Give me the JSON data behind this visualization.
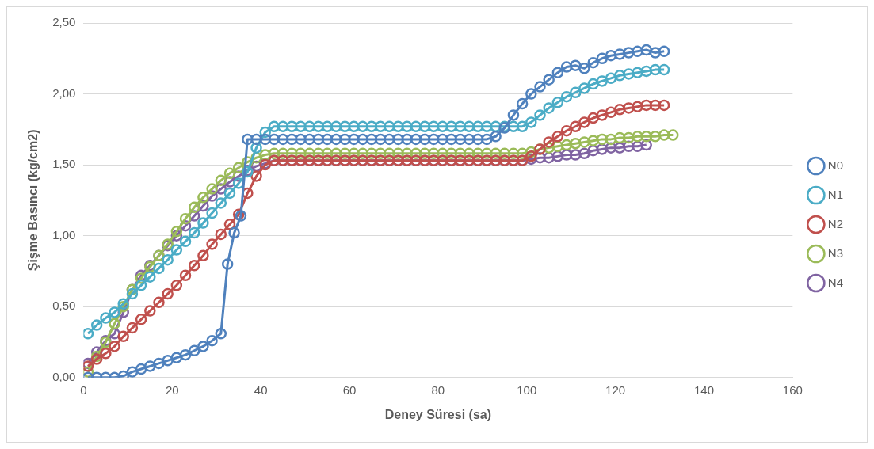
{
  "chart_data": {
    "type": "line",
    "xlabel": "Deney Süresi (sa)",
    "ylabel": "Şişme Basıncı (kg/cm2)",
    "xlim": [
      0,
      160
    ],
    "xticks": [
      0,
      20,
      40,
      60,
      80,
      100,
      120,
      140,
      160
    ],
    "ylim": [
      0,
      2.5
    ],
    "yticks": [
      {
        "value": 0,
        "label": "0,00"
      },
      {
        "value": 0.5,
        "label": "0,50"
      },
      {
        "value": 1,
        "label": "1,00"
      },
      {
        "value": 1.5,
        "label": "1,50"
      },
      {
        "value": 2,
        "label": "2,00"
      },
      {
        "value": 2.5,
        "label": "2,50"
      }
    ],
    "grid": "y",
    "legend": "right",
    "marker": "circle",
    "series": [
      {
        "name": "N0",
        "color": "#4f81bd",
        "x": [
          1,
          3,
          5,
          7,
          9,
          11,
          13,
          15,
          17,
          19,
          21,
          23,
          25,
          27,
          29,
          31,
          32.5,
          34,
          35.5,
          37,
          39,
          41,
          43,
          45,
          47,
          49,
          51,
          53,
          55,
          57,
          59,
          61,
          63,
          65,
          67,
          69,
          71,
          73,
          75,
          77,
          79,
          81,
          83,
          85,
          87,
          89,
          91,
          93,
          95,
          97,
          99,
          101,
          103,
          105,
          107,
          109,
          111,
          113,
          115,
          117,
          119,
          121,
          123,
          125,
          127,
          129,
          131
        ],
        "values": [
          0,
          0,
          0,
          0,
          0.01,
          0.04,
          0.06,
          0.08,
          0.1,
          0.12,
          0.14,
          0.16,
          0.19,
          0.22,
          0.26,
          0.31,
          0.8,
          1.02,
          1.14,
          1.68,
          1.68,
          1.68,
          1.68,
          1.68,
          1.68,
          1.68,
          1.68,
          1.68,
          1.68,
          1.68,
          1.68,
          1.68,
          1.68,
          1.68,
          1.68,
          1.68,
          1.68,
          1.68,
          1.68,
          1.68,
          1.68,
          1.68,
          1.68,
          1.68,
          1.68,
          1.68,
          1.68,
          1.7,
          1.76,
          1.85,
          1.93,
          2.0,
          2.05,
          2.1,
          2.15,
          2.19,
          2.2,
          2.18,
          2.22,
          2.25,
          2.27,
          2.28,
          2.29,
          2.3,
          2.31,
          2.29,
          2.3
        ]
      },
      {
        "name": "N1",
        "color": "#4bacc6",
        "x": [
          1,
          3,
          5,
          7,
          9,
          11,
          13,
          15,
          17,
          19,
          21,
          23,
          25,
          27,
          29,
          31,
          33,
          35,
          37,
          39,
          41,
          43,
          45,
          47,
          49,
          51,
          53,
          55,
          57,
          59,
          61,
          63,
          65,
          67,
          69,
          71,
          73,
          75,
          77,
          79,
          81,
          83,
          85,
          87,
          89,
          91,
          93,
          95,
          97,
          99,
          101,
          103,
          105,
          107,
          109,
          111,
          113,
          115,
          117,
          119,
          121,
          123,
          125,
          127,
          129,
          131
        ],
        "values": [
          0.31,
          0.37,
          0.42,
          0.46,
          0.52,
          0.59,
          0.65,
          0.71,
          0.77,
          0.83,
          0.9,
          0.96,
          1.02,
          1.09,
          1.16,
          1.23,
          1.3,
          1.37,
          1.45,
          1.62,
          1.73,
          1.77,
          1.77,
          1.77,
          1.77,
          1.77,
          1.77,
          1.77,
          1.77,
          1.77,
          1.77,
          1.77,
          1.77,
          1.77,
          1.77,
          1.77,
          1.77,
          1.77,
          1.77,
          1.77,
          1.77,
          1.77,
          1.77,
          1.77,
          1.77,
          1.77,
          1.77,
          1.77,
          1.77,
          1.77,
          1.8,
          1.85,
          1.9,
          1.94,
          1.98,
          2.01,
          2.04,
          2.07,
          2.09,
          2.11,
          2.13,
          2.14,
          2.15,
          2.16,
          2.17,
          2.17
        ]
      },
      {
        "name": "N2",
        "color": "#c0504d",
        "x": [
          1,
          3,
          5,
          7,
          9,
          11,
          13,
          15,
          17,
          19,
          21,
          23,
          25,
          27,
          29,
          31,
          33,
          35,
          37,
          39,
          41,
          43,
          45,
          47,
          49,
          51,
          53,
          55,
          57,
          59,
          61,
          63,
          65,
          67,
          69,
          71,
          73,
          75,
          77,
          79,
          81,
          83,
          85,
          87,
          89,
          91,
          93,
          95,
          97,
          99,
          101,
          103,
          105,
          107,
          109,
          111,
          113,
          115,
          117,
          119,
          121,
          123,
          125,
          127,
          129,
          131
        ],
        "values": [
          0.08,
          0.13,
          0.17,
          0.22,
          0.29,
          0.35,
          0.41,
          0.47,
          0.53,
          0.59,
          0.65,
          0.72,
          0.79,
          0.86,
          0.94,
          1.01,
          1.08,
          1.15,
          1.3,
          1.42,
          1.5,
          1.53,
          1.53,
          1.53,
          1.53,
          1.53,
          1.53,
          1.53,
          1.53,
          1.53,
          1.53,
          1.53,
          1.53,
          1.53,
          1.53,
          1.53,
          1.53,
          1.53,
          1.53,
          1.53,
          1.53,
          1.53,
          1.53,
          1.53,
          1.53,
          1.53,
          1.53,
          1.53,
          1.53,
          1.53,
          1.56,
          1.61,
          1.66,
          1.7,
          1.74,
          1.77,
          1.8,
          1.83,
          1.85,
          1.87,
          1.89,
          1.9,
          1.91,
          1.92,
          1.92,
          1.92
        ]
      },
      {
        "name": "N3",
        "color": "#9bbb59",
        "x": [
          1,
          3,
          5,
          7,
          9,
          11,
          13,
          15,
          17,
          19,
          21,
          23,
          25,
          27,
          29,
          31,
          33,
          35,
          37,
          39,
          41,
          43,
          45,
          47,
          49,
          51,
          53,
          55,
          57,
          59,
          61,
          63,
          65,
          67,
          69,
          71,
          73,
          75,
          77,
          79,
          81,
          83,
          85,
          87,
          89,
          91,
          93,
          95,
          97,
          99,
          101,
          103,
          105,
          107,
          109,
          111,
          113,
          115,
          117,
          119,
          121,
          123,
          125,
          127,
          129,
          131,
          133
        ],
        "values": [
          0.04,
          0.15,
          0.25,
          0.38,
          0.5,
          0.62,
          0.7,
          0.78,
          0.86,
          0.94,
          1.03,
          1.12,
          1.2,
          1.27,
          1.33,
          1.39,
          1.44,
          1.48,
          1.52,
          1.55,
          1.57,
          1.58,
          1.58,
          1.58,
          1.58,
          1.58,
          1.58,
          1.58,
          1.58,
          1.58,
          1.58,
          1.58,
          1.58,
          1.58,
          1.58,
          1.58,
          1.58,
          1.58,
          1.58,
          1.58,
          1.58,
          1.58,
          1.58,
          1.58,
          1.58,
          1.58,
          1.58,
          1.58,
          1.58,
          1.58,
          1.59,
          1.61,
          1.62,
          1.63,
          1.64,
          1.65,
          1.66,
          1.67,
          1.68,
          1.68,
          1.69,
          1.69,
          1.7,
          1.7,
          1.7,
          1.71,
          1.71
        ]
      },
      {
        "name": "N4",
        "color": "#8064a2",
        "x": [
          1,
          3,
          5,
          7,
          9,
          11,
          13,
          15,
          17,
          19,
          21,
          23,
          25,
          27,
          29,
          31,
          33,
          35,
          37,
          39,
          41,
          43,
          45,
          47,
          49,
          51,
          53,
          55,
          57,
          59,
          61,
          63,
          65,
          67,
          69,
          71,
          73,
          75,
          77,
          79,
          81,
          83,
          85,
          87,
          89,
          91,
          93,
          95,
          97,
          99,
          101,
          103,
          105,
          107,
          109,
          111,
          113,
          115,
          117,
          119,
          121,
          123,
          125,
          127
        ],
        "values": [
          0.1,
          0.18,
          0.26,
          0.31,
          0.46,
          0.62,
          0.72,
          0.79,
          0.86,
          0.93,
          1.0,
          1.07,
          1.14,
          1.21,
          1.28,
          1.33,
          1.38,
          1.42,
          1.46,
          1.49,
          1.51,
          1.53,
          1.53,
          1.53,
          1.53,
          1.53,
          1.53,
          1.53,
          1.53,
          1.53,
          1.53,
          1.53,
          1.53,
          1.53,
          1.53,
          1.53,
          1.53,
          1.53,
          1.53,
          1.53,
          1.53,
          1.53,
          1.53,
          1.53,
          1.53,
          1.53,
          1.53,
          1.53,
          1.53,
          1.53,
          1.54,
          1.55,
          1.55,
          1.56,
          1.57,
          1.57,
          1.58,
          1.6,
          1.61,
          1.62,
          1.62,
          1.63,
          1.63,
          1.64
        ]
      }
    ]
  }
}
